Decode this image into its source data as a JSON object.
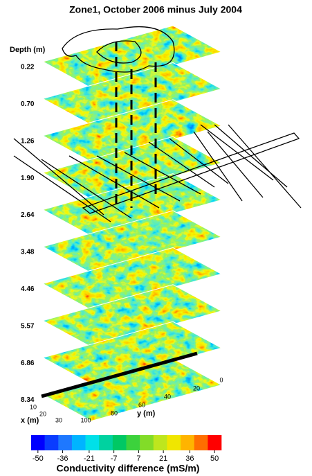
{
  "title": "Zone1, October 2006 minus July 2004",
  "depth_label": "Depth (m)",
  "depths": [
    "0.22",
    "0.70",
    "1.26",
    "1.90",
    "2.64",
    "3.48",
    "4.46",
    "5.57",
    "6.86",
    "8.34"
  ],
  "x_axis": {
    "label": "x (m)",
    "ticks": [
      "10",
      "20",
      "30"
    ]
  },
  "y_axis": {
    "label": "y (m)",
    "ticks": [
      "100",
      "80",
      "60",
      "40",
      "20",
      "0"
    ]
  },
  "colorbar": {
    "label": "Conductivity difference (mS/m)",
    "ticks": [
      -50,
      -36,
      -21,
      -7,
      7,
      21,
      36,
      50
    ],
    "colors": [
      "#0000ff",
      "#0a3cff",
      "#1e78ff",
      "#00b4ff",
      "#00e0e8",
      "#00d2a0",
      "#00c864",
      "#3cd23c",
      "#82dc28",
      "#bee61e",
      "#f0e600",
      "#ffb400",
      "#ff6e00",
      "#ff0000"
    ]
  }
}
